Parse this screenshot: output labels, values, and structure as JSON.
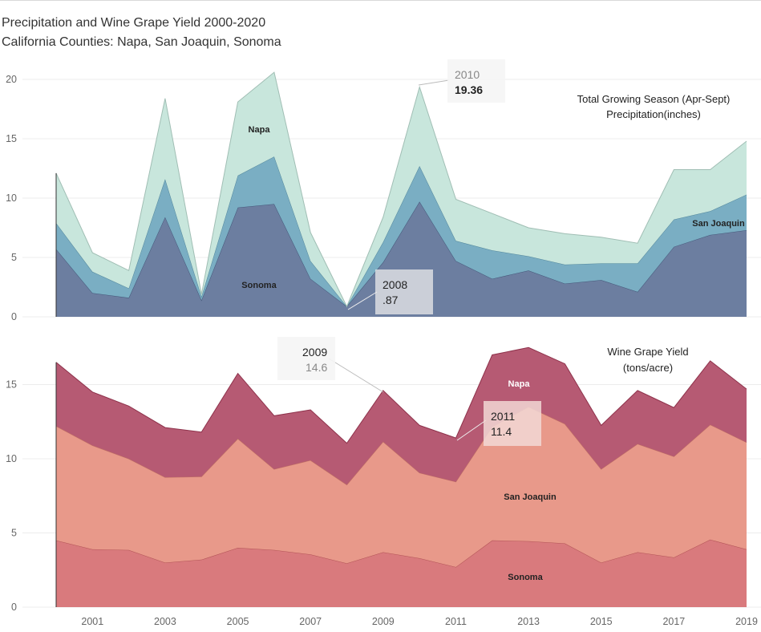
{
  "title": "Precipitation and Wine Grape Yield 2000-2020",
  "subtitle": "California Counties: Napa, San Joaquin, Sonoma",
  "chart_data": [
    {
      "type": "area",
      "stacked": true,
      "title": "Total Growing Season (Apr-Sept)",
      "title_line2": "Precipitation(inches)",
      "x": [
        2000,
        2001,
        2002,
        2003,
        2004,
        2005,
        2006,
        2007,
        2008,
        2009,
        2010,
        2011,
        2012,
        2013,
        2014,
        2015,
        2016,
        2017,
        2018,
        2019
      ],
      "ylim": [
        0,
        21
      ],
      "yticks": [
        0,
        5,
        10,
        15,
        20
      ],
      "series": [
        {
          "name": "Sonoma",
          "color": "#6c7ea0",
          "values": [
            5.7,
            2.0,
            1.6,
            8.4,
            1.4,
            9.2,
            9.5,
            3.2,
            0.87,
            4.6,
            9.7,
            4.7,
            3.2,
            3.9,
            2.8,
            3.1,
            2.1,
            5.9,
            6.9,
            7.3
          ]
        },
        {
          "name": "San Joaquin",
          "color": "#7aaec3",
          "values": [
            2.2,
            1.8,
            0.8,
            3.2,
            0.3,
            2.7,
            4.0,
            1.5,
            0.0,
            1.7,
            3.0,
            1.7,
            2.4,
            1.2,
            1.6,
            1.4,
            2.4,
            2.3,
            2.0,
            3.0
          ]
        },
        {
          "name": "Napa",
          "color": "#c8e6dc",
          "values": [
            4.2,
            1.6,
            1.5,
            6.8,
            0.2,
            6.2,
            7.1,
            2.4,
            0.0,
            2.1,
            6.66,
            3.5,
            3.1,
            2.4,
            2.6,
            2.2,
            1.7,
            4.2,
            3.5,
            4.5
          ]
        }
      ],
      "annotations": [
        {
          "year": "2010",
          "value": "19.36"
        },
        {
          "year": "2008",
          "value": ".87"
        }
      ]
    },
    {
      "type": "area",
      "stacked": true,
      "title": "Wine Grape Yield",
      "title_line2": "(tons/acre)",
      "x": [
        2000,
        2001,
        2002,
        2003,
        2004,
        2005,
        2006,
        2007,
        2008,
        2009,
        2010,
        2011,
        2012,
        2013,
        2014,
        2015,
        2016,
        2017,
        2018,
        2019
      ],
      "ylim": [
        0,
        18
      ],
      "yticks": [
        0,
        5,
        10,
        15
      ],
      "xticks": [
        2001,
        2003,
        2005,
        2007,
        2009,
        2011,
        2013,
        2015,
        2017,
        2019
      ],
      "series": [
        {
          "name": "Sonoma",
          "color": "#d97a7d",
          "values": [
            4.5,
            3.9,
            3.85,
            3.0,
            3.2,
            4.0,
            3.85,
            3.55,
            2.95,
            3.7,
            3.3,
            2.7,
            4.5,
            4.45,
            4.3,
            3.0,
            3.7,
            3.35,
            4.55,
            3.9
          ]
        },
        {
          "name": "San Joaquin",
          "color": "#e8998a",
          "values": [
            7.7,
            7.0,
            6.15,
            5.75,
            5.6,
            7.35,
            5.45,
            6.35,
            5.3,
            7.45,
            5.75,
            5.75,
            7.65,
            9.05,
            8.05,
            6.3,
            7.3,
            6.8,
            7.75,
            7.2
          ]
        },
        {
          "name": "Napa",
          "color": "#b65a73",
          "values": [
            4.3,
            3.6,
            3.55,
            3.35,
            3.0,
            4.4,
            3.6,
            3.4,
            2.8,
            3.45,
            3.2,
            2.95,
            4.85,
            4.0,
            4.05,
            2.95,
            3.6,
            3.3,
            4.3,
            3.6
          ]
        }
      ],
      "annotations": [
        {
          "year": "2009",
          "value": "14.6"
        },
        {
          "year": "2011",
          "value": "11.4"
        }
      ]
    }
  ]
}
